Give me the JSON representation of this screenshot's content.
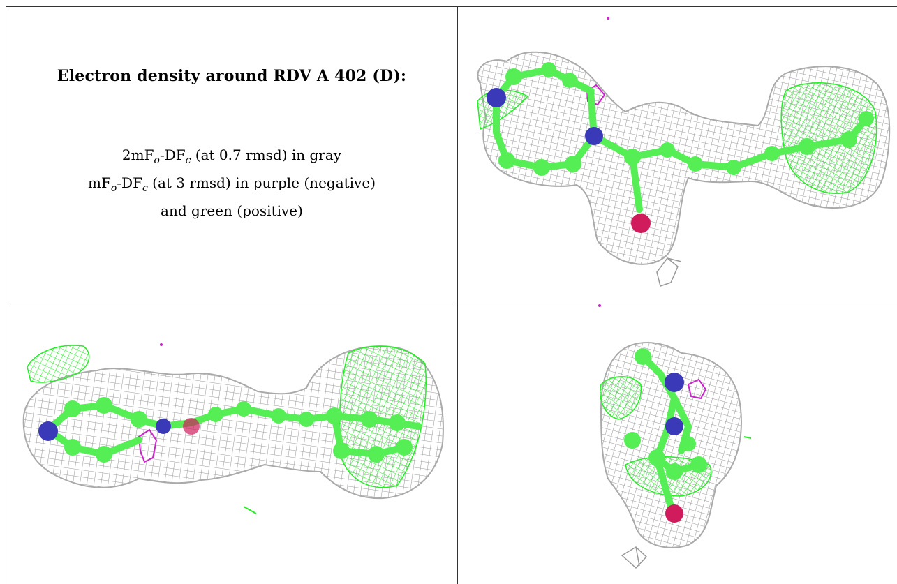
{
  "document": {
    "title": "Electron density around RDV A 402 (D):",
    "legend": {
      "line1": {
        "prefix": "2mF",
        "sub1": "o",
        "mid": "-DF",
        "sub2": "c",
        "suffix": " (at 0.7 rmsd) in gray"
      },
      "line2": {
        "prefix": "mF",
        "sub1": "o",
        "mid": "-DF",
        "sub2": "c",
        "suffix": " (at 3 rmsd) in purple (negative)"
      },
      "line3": "and green (positive)"
    }
  },
  "colors": {
    "mesh_gray": "#9a9a9a",
    "positive_green": "#22ee22",
    "negative_purple": "#cc22cc",
    "carbon": "#55ee55",
    "nitrogen": "#3a3ab8",
    "oxygen": "#d01c5c"
  },
  "panels": [
    "density-view-1",
    "density-view-2",
    "density-view-3"
  ]
}
